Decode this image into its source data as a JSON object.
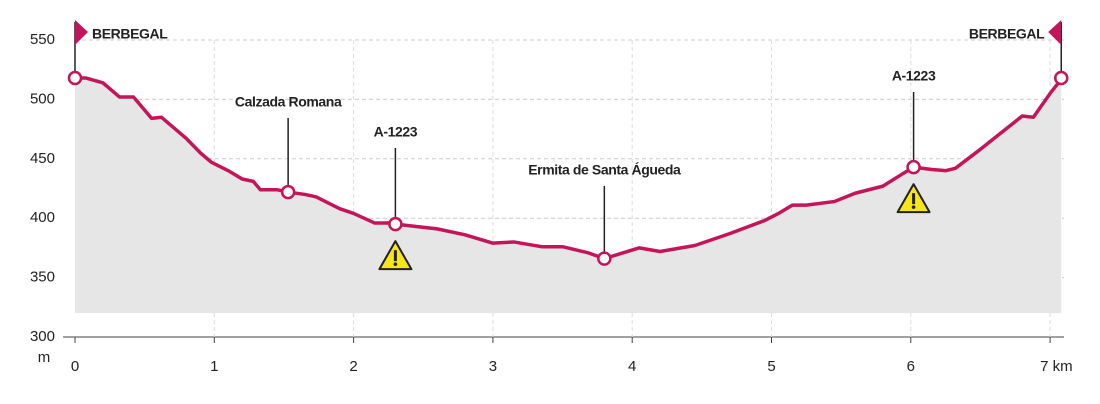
{
  "chart_data": {
    "type": "area",
    "x": [
      0,
      0.08,
      0.2,
      0.32,
      0.42,
      0.55,
      0.62,
      0.72,
      0.8,
      0.9,
      0.98,
      1.1,
      1.2,
      1.28,
      1.33,
      1.45,
      1.53,
      1.65,
      1.73,
      1.9,
      2.0,
      2.15,
      2.25,
      2.3,
      2.45,
      2.6,
      2.8,
      3.0,
      3.15,
      3.35,
      3.5,
      3.68,
      3.8,
      4.05,
      4.2,
      4.45,
      4.7,
      4.95,
      5.05,
      5.15,
      5.25,
      5.45,
      5.6,
      5.8,
      5.95,
      6.02,
      6.15,
      6.25,
      6.32,
      6.5,
      6.65,
      6.8,
      6.88,
      7.0,
      7.06,
      7.08
    ],
    "series": [
      {
        "color": "#c4145a",
        "fill": "#e6e6e6",
        "values": [
          518,
          518,
          514,
          502,
          502,
          484,
          485,
          475,
          467,
          455,
          447,
          440,
          433,
          431,
          424,
          424,
          422,
          420,
          418,
          408,
          404,
          396,
          396,
          395,
          393,
          391,
          386,
          379,
          380,
          376,
          376,
          371,
          366,
          375,
          372,
          377,
          387,
          398,
          404,
          411,
          411,
          414,
          421,
          427,
          438,
          443,
          441,
          440,
          442,
          458,
          472,
          486,
          485,
          505,
          514,
          518
        ]
      }
    ],
    "annotations": [
      {
        "label": "BERBEGAL",
        "x": 0,
        "y": 518,
        "flag": "right"
      },
      {
        "label": "Calzada Romana",
        "x": 1.53,
        "y": 422
      },
      {
        "label": "A-1223",
        "x": 2.3,
        "y": 395,
        "warning": true
      },
      {
        "label": "Ermita de Santa Águeda",
        "x": 3.8,
        "y": 366
      },
      {
        "label": "A-1223",
        "x": 6.02,
        "y": 443,
        "warning": true
      },
      {
        "label": "BERBEGAL",
        "x": 7.08,
        "y": 518,
        "flag": "left"
      }
    ],
    "y_label": "m",
    "xlim": [
      0,
      7.1
    ],
    "ylim": [
      300,
      550
    ],
    "xticks": [
      0,
      1,
      2,
      3,
      4,
      5,
      6,
      {
        "value": 7,
        "label": "7 km"
      }
    ],
    "yticks": [
      300,
      350,
      400,
      450,
      500,
      550
    ],
    "grid": true
  }
}
